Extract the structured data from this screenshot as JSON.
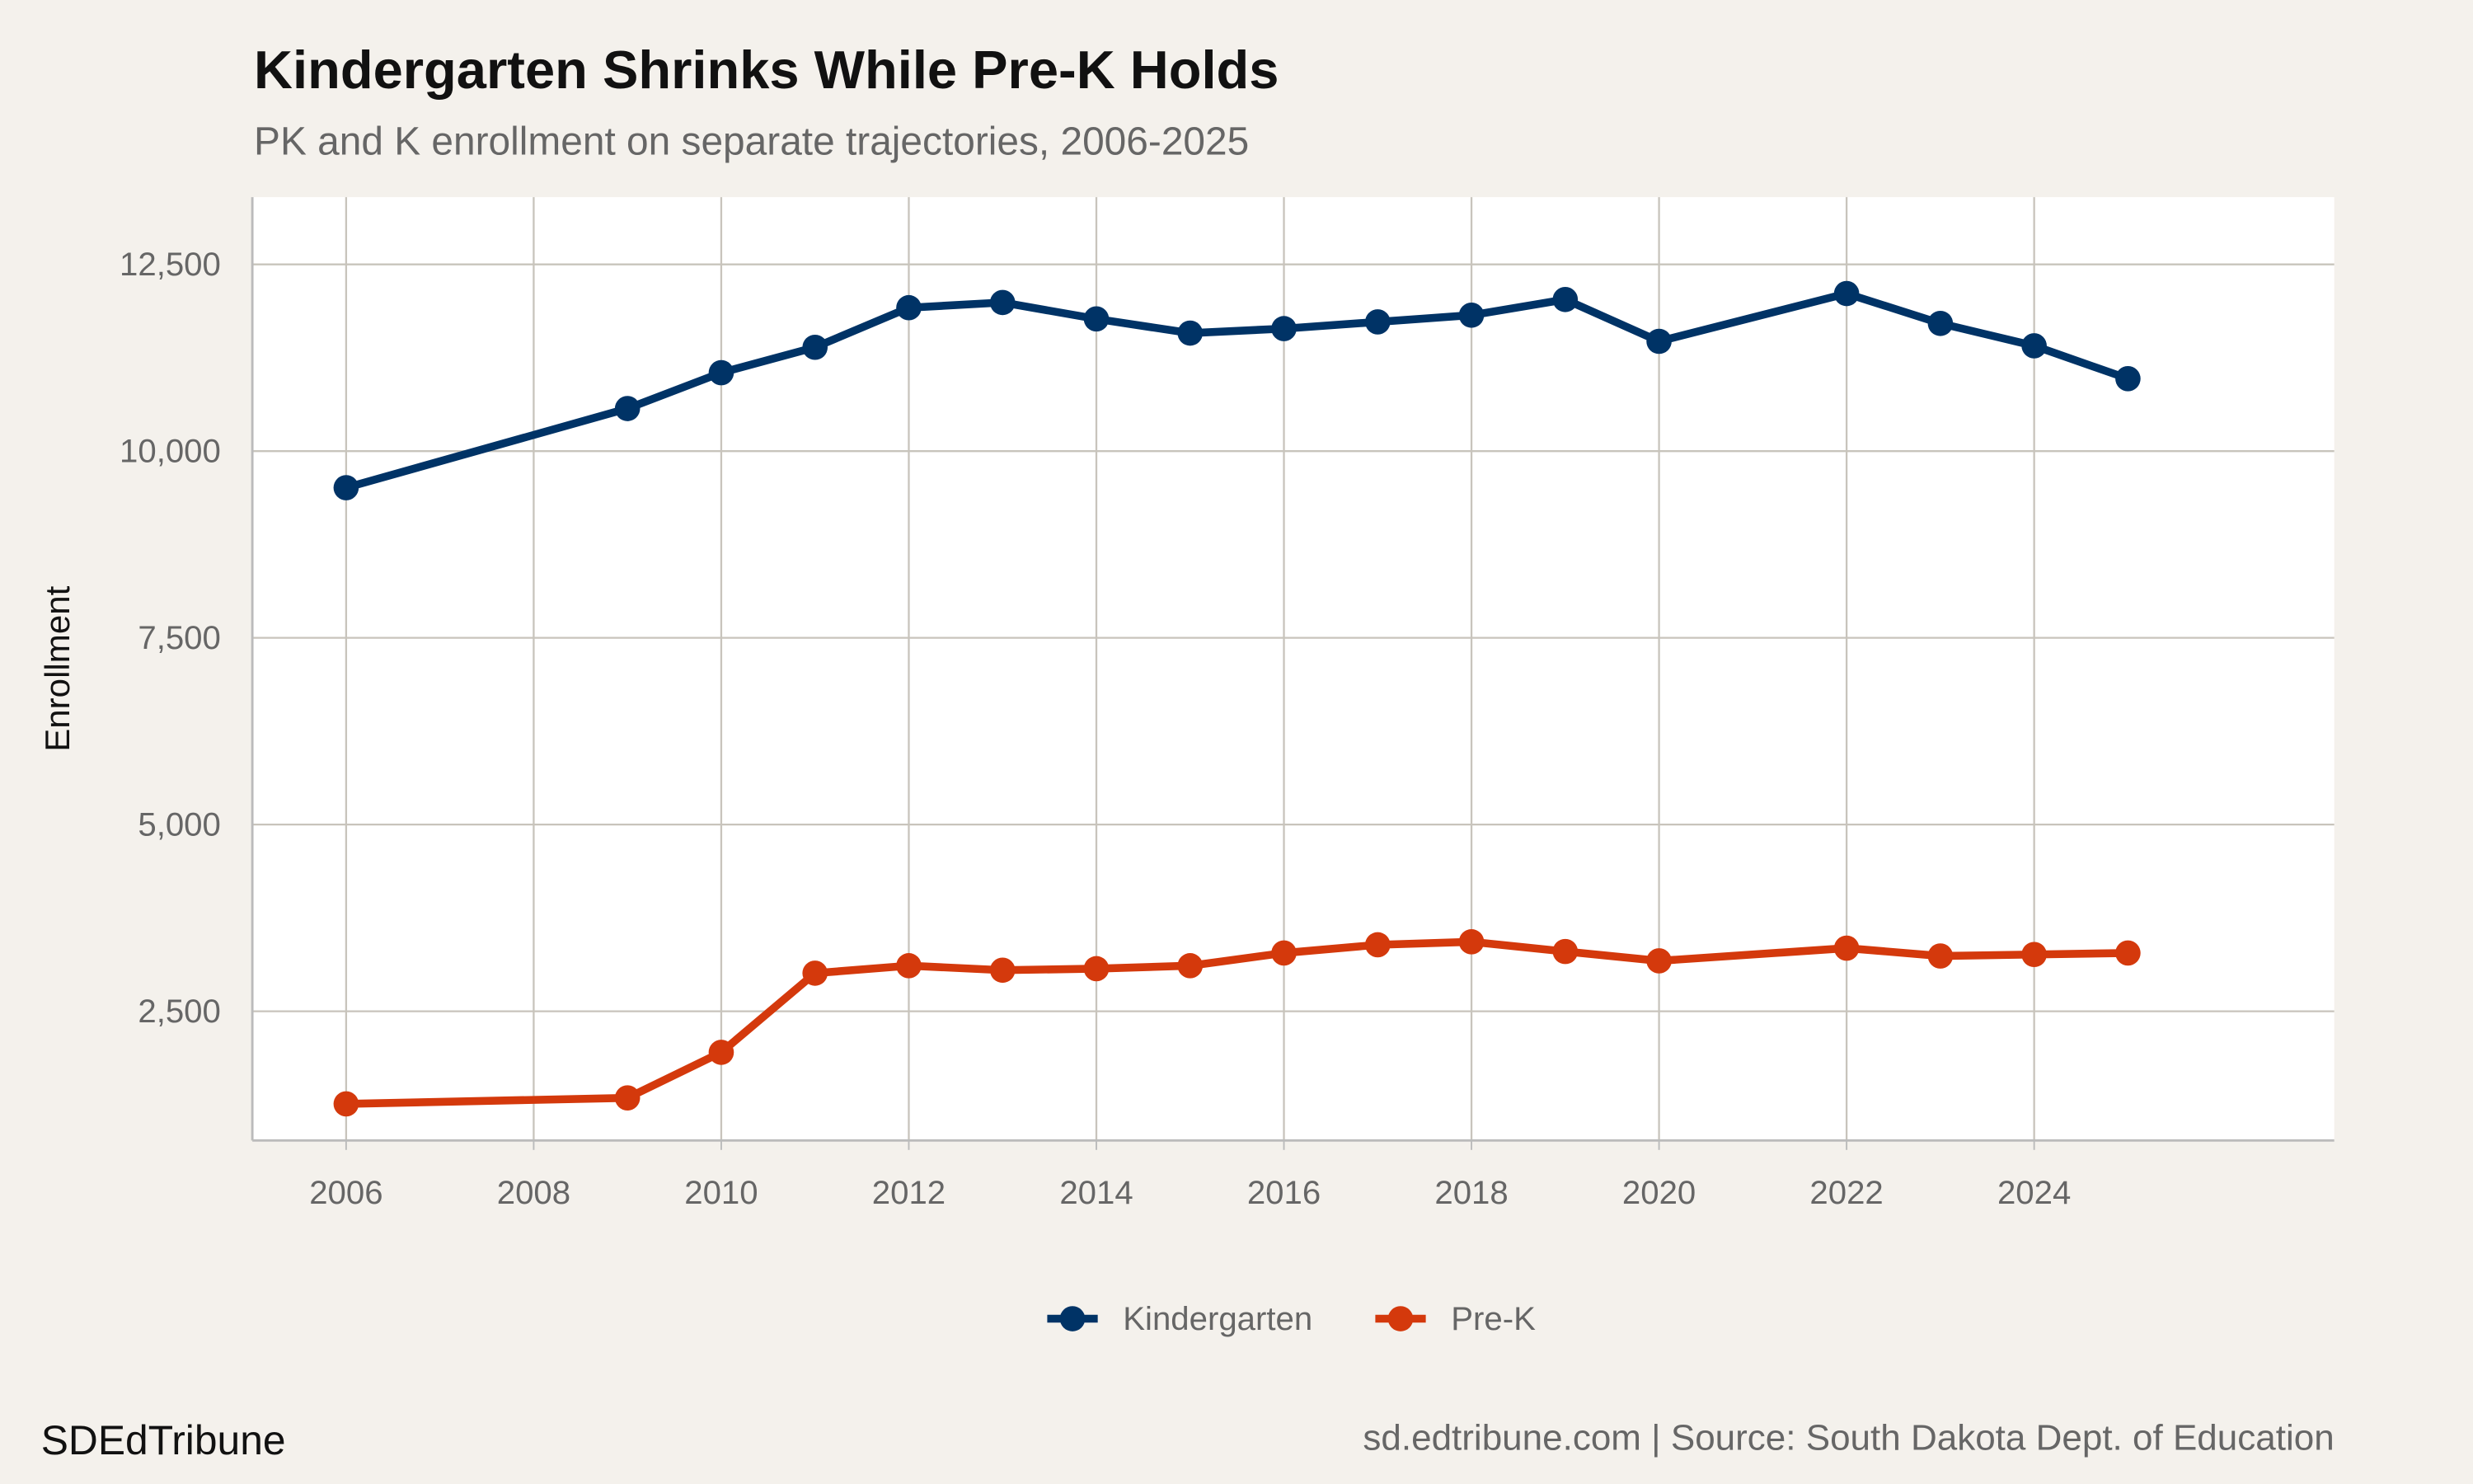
{
  "chart_data": {
    "type": "line",
    "title": "Kindergarten Shrinks While Pre-K Holds",
    "subtitle": "PK and K enrollment on separate trajectories, 2006-2025",
    "xlabel": "",
    "ylabel": "Enrollment",
    "xlim": [
      2005,
      2027.2
    ],
    "ylim": [
      770,
      13400
    ],
    "xticks": [
      2006,
      2008,
      2010,
      2012,
      2014,
      2016,
      2018,
      2020,
      2022,
      2024
    ],
    "yticks": [
      2500,
      5000,
      7500,
      10000,
      12500
    ],
    "ytick_labels": [
      "2,500",
      "5,000",
      "7,500",
      "10,000",
      "12,500"
    ],
    "grid": true,
    "legend_position": "bottom",
    "x": [
      2006,
      2009,
      2010,
      2011,
      2012,
      2013,
      2014,
      2015,
      2016,
      2017,
      2018,
      2019,
      2020,
      2022,
      2023,
      2024,
      2025
    ],
    "series": [
      {
        "name": "Kindergarten",
        "color": "#003366",
        "values": [
          9510,
          10570,
          11050,
          11390,
          11920,
          11990,
          11770,
          11580,
          11640,
          11730,
          11820,
          12030,
          11470,
          12110,
          11710,
          11410,
          10970
        ]
      },
      {
        "name": "Pre-K",
        "color": "#d4390c",
        "values": [
          1260,
          1340,
          1950,
          3010,
          3110,
          3050,
          3070,
          3110,
          3280,
          3390,
          3430,
          3300,
          3175,
          3345,
          3240,
          3260,
          3280
        ]
      }
    ]
  },
  "footer": {
    "brand": "SDEdTribune",
    "source": "sd.edtribune.com | Source: South Dakota Dept. of Education"
  }
}
